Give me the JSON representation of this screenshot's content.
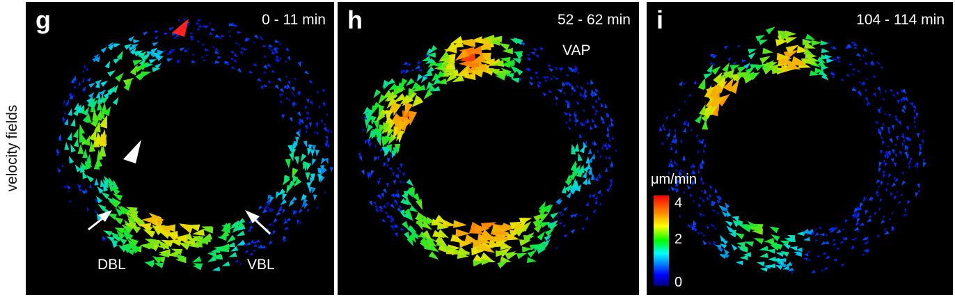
{
  "row_label": "velocity fields",
  "colors": {
    "background": "#000000",
    "arrow_white": "#ffffff",
    "marker_red": "#ff2020"
  },
  "panels": [
    {
      "letter": "g",
      "time": "0 - 11 min",
      "annotations": [
        "DBL",
        "VBL"
      ]
    },
    {
      "letter": "h",
      "time": "52 - 62 min",
      "annotations": [
        "VAP"
      ]
    },
    {
      "letter": "i",
      "time": "104 - 114 min",
      "annotations": []
    }
  ],
  "colorbar": {
    "title": "μm/min",
    "ticks": [
      "4",
      "2",
      "0"
    ]
  }
}
